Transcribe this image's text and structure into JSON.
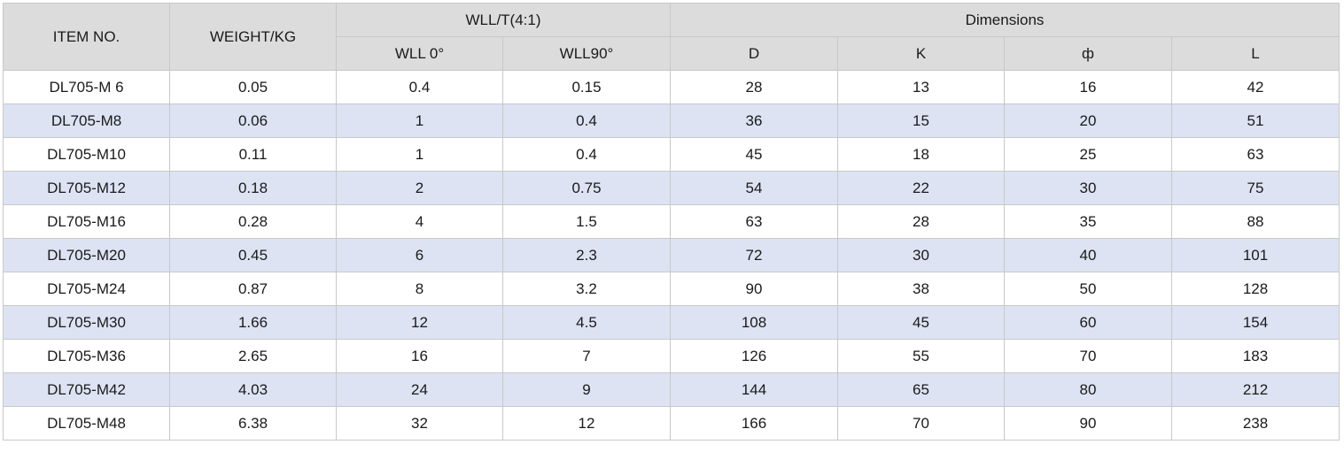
{
  "table": {
    "headers": {
      "item_no": "ITEM NO.",
      "weight": "WEIGHT/KG",
      "wll_group": "WLL/T(4:1)",
      "dimensions_group": "Dimensions",
      "wll_0": "WLL 0°",
      "wll_90": "WLL90°",
      "d": "D",
      "k": "K",
      "phi": "ф",
      "l": "L"
    },
    "rows": [
      [
        "DL705-M 6",
        "0.05",
        "0.4",
        "0.15",
        "28",
        "13",
        "16",
        "42"
      ],
      [
        "DL705-M8",
        "0.06",
        "1",
        "0.4",
        "36",
        "15",
        "20",
        "51"
      ],
      [
        "DL705-M10",
        "0.11",
        "1",
        "0.4",
        "45",
        "18",
        "25",
        "63"
      ],
      [
        "DL705-M12",
        "0.18",
        "2",
        "0.75",
        "54",
        "22",
        "30",
        "75"
      ],
      [
        "DL705-M16",
        "0.28",
        "4",
        "1.5",
        "63",
        "28",
        "35",
        "88"
      ],
      [
        "DL705-M20",
        "0.45",
        "6",
        "2.3",
        "72",
        "30",
        "40",
        "101"
      ],
      [
        "DL705-M24",
        "0.87",
        "8",
        "3.2",
        "90",
        "38",
        "50",
        "128"
      ],
      [
        "DL705-M30",
        "1.66",
        "12",
        "4.5",
        "108",
        "45",
        "60",
        "154"
      ],
      [
        "DL705-M36",
        "2.65",
        "16",
        "7",
        "126",
        "55",
        "70",
        "183"
      ],
      [
        "DL705-M42",
        "4.03",
        "24",
        "9",
        "144",
        "65",
        "80",
        "212"
      ],
      [
        "DL705-M48",
        "6.38",
        "32",
        "12",
        "166",
        "70",
        "90",
        "238"
      ]
    ],
    "colors": {
      "header_bg": "#dcdcdc",
      "stripe_bg": "#dde3f3",
      "row_bg": "#ffffff",
      "border": "#c8c8c8"
    }
  }
}
